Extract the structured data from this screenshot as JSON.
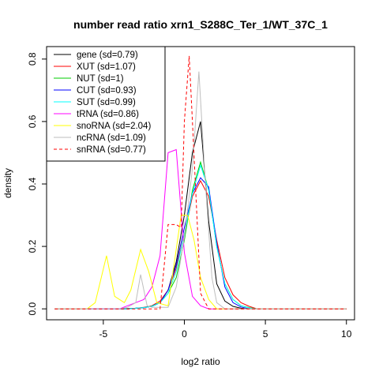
{
  "chart_data": {
    "type": "line",
    "title": "number read ratio xrn1_S288C_Ter_1/WT_37C_1",
    "xlabel": "log2 ratio",
    "ylabel": "density",
    "xlim": [
      -8.5,
      10.5
    ],
    "ylim": [
      -0.035,
      0.84
    ],
    "x_ticks": [
      -5,
      0,
      5,
      10
    ],
    "y_ticks": [
      0.0,
      0.2,
      0.4,
      0.6,
      0.8
    ],
    "x_tick_labels": [
      "-5",
      "0",
      "5",
      "10"
    ],
    "y_tick_labels": [
      "0.0",
      "0.2",
      "0.4",
      "0.6",
      "0.8"
    ],
    "grid": false,
    "legend_position": "top-left",
    "series": [
      {
        "name": "gene (sd=0.79)",
        "color": "#000000",
        "dash": "solid",
        "x": [
          -8,
          -4,
          -3,
          -2.5,
          -2,
          -1.5,
          -1,
          -0.5,
          0,
          0.5,
          1,
          1.5,
          2,
          2.5,
          3,
          3.5,
          4,
          5
        ],
        "y": [
          0,
          0,
          0.002,
          0.004,
          0.008,
          0.02,
          0.06,
          0.15,
          0.3,
          0.5,
          0.6,
          0.28,
          0.08,
          0.025,
          0.008,
          0.002,
          0,
          0
        ]
      },
      {
        "name": "XUT (sd=1.07)",
        "color": "#ff0000",
        "dash": "solid",
        "x": [
          -8,
          -3.5,
          -3,
          -2.5,
          -2,
          -1.5,
          -1,
          -0.5,
          0,
          0.5,
          1,
          1.5,
          2,
          2.5,
          3,
          3.5,
          4,
          4.5,
          10
        ],
        "y": [
          0,
          0,
          0.002,
          0.005,
          0.01,
          0.025,
          0.06,
          0.13,
          0.24,
          0.36,
          0.41,
          0.36,
          0.22,
          0.1,
          0.045,
          0.02,
          0.008,
          0,
          0
        ]
      },
      {
        "name": "NUT (sd=1)",
        "color": "#00cc00",
        "dash": "solid",
        "x": [
          -8,
          -3.5,
          -3,
          -2.5,
          -2,
          -1.5,
          -1,
          -0.5,
          0,
          0.5,
          1,
          1.5,
          2,
          2.5,
          3,
          3.5,
          4,
          4.5,
          10
        ],
        "y": [
          0,
          0,
          0.002,
          0.004,
          0.009,
          0.02,
          0.05,
          0.1,
          0.22,
          0.38,
          0.47,
          0.38,
          0.2,
          0.08,
          0.03,
          0.01,
          0.004,
          0,
          0
        ]
      },
      {
        "name": "CUT (sd=0.93)",
        "color": "#0000ff",
        "dash": "solid",
        "x": [
          -8,
          -3.5,
          -3,
          -2.5,
          -2,
          -1.5,
          -1,
          -0.5,
          0,
          0.5,
          1,
          1.5,
          2,
          2.5,
          3,
          3.5,
          4,
          10
        ],
        "y": [
          0,
          0,
          0.002,
          0.004,
          0.008,
          0.02,
          0.06,
          0.14,
          0.26,
          0.37,
          0.42,
          0.39,
          0.21,
          0.07,
          0.02,
          0.006,
          0,
          0
        ]
      },
      {
        "name": "SUT (sd=0.99)",
        "color": "#00ffff",
        "dash": "solid",
        "x": [
          -8,
          -3.5,
          -3,
          -2.5,
          -2,
          -1.5,
          -1,
          -0.5,
          0,
          0.5,
          1,
          1.5,
          2,
          2.5,
          3,
          3.5,
          4,
          4.5,
          10
        ],
        "y": [
          0,
          0,
          0.002,
          0.004,
          0.008,
          0.02,
          0.05,
          0.12,
          0.24,
          0.37,
          0.46,
          0.38,
          0.2,
          0.08,
          0.03,
          0.01,
          0.003,
          0,
          0
        ]
      },
      {
        "name": "tRNA (sd=0.86)",
        "color": "#ff00ff",
        "dash": "solid",
        "x": [
          -8,
          -4,
          -3.5,
          -3,
          -2.5,
          -2,
          -1.5,
          -1,
          -0.5,
          0,
          0.5,
          1,
          1.5,
          2,
          10
        ],
        "y": [
          0,
          0,
          0.01,
          0.02,
          0.03,
          0.07,
          0.17,
          0.5,
          0.51,
          0.18,
          0.04,
          0.01,
          0,
          0,
          0
        ]
      },
      {
        "name": "snoRNA (sd=2.04)",
        "color": "#ffff00",
        "dash": "solid",
        "x": [
          -8,
          -6,
          -5.5,
          -4.8,
          -4.3,
          -3.7,
          -3.3,
          -2.7,
          -2.2,
          -1.7,
          -1,
          -0.2,
          0.2,
          0.6,
          1,
          1.5,
          2,
          10
        ],
        "y": [
          0,
          0,
          0.02,
          0.17,
          0.04,
          0.02,
          0.06,
          0.19,
          0.12,
          0.02,
          0.01,
          0.3,
          0.3,
          0.22,
          0.1,
          0.03,
          0,
          0
        ]
      },
      {
        "name": "ncRNA (sd=1.09)",
        "color": "#bebebe",
        "dash": "solid",
        "x": [
          -8,
          -4,
          -3.5,
          -3,
          -2.7,
          -2.3,
          -2,
          -1,
          -0.5,
          0,
          0.5,
          0.9,
          1.3,
          1.7,
          2,
          2.5,
          10
        ],
        "y": [
          0,
          0,
          0.005,
          0.02,
          0.11,
          0.01,
          0.005,
          0.005,
          0.07,
          0.23,
          0.45,
          0.76,
          0.4,
          0.1,
          0.02,
          0,
          0
        ]
      },
      {
        "name": "snRNA (sd=0.77)",
        "color": "#ff0000",
        "dash": "dashed",
        "x": [
          -8,
          -1.5,
          -1,
          -0.5,
          -0.2,
          0,
          0.3,
          0.5,
          0.8,
          1,
          1.5,
          2,
          10
        ],
        "y": [
          0,
          0,
          0.27,
          0.27,
          0.26,
          0.6,
          0.81,
          0.6,
          0.27,
          0.05,
          0,
          0,
          0
        ]
      }
    ]
  }
}
